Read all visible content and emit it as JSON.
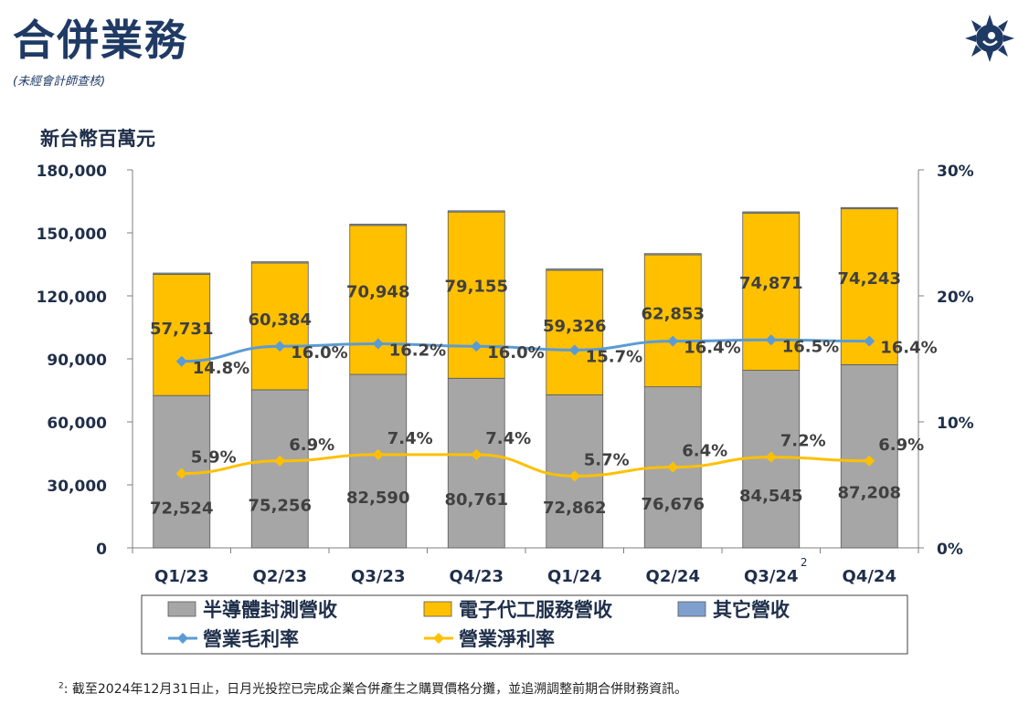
{
  "title": "合併業務",
  "subtitle": "(未經會計師查核)",
  "footnote": {
    "mark": "2",
    "text": ": 截至2024年12月31日止，日月光投控已完成企業合併產生之購買價格分攤，並追溯調整前期合併財務資訊。"
  },
  "logo": {
    "icon": "sun-logo-icon",
    "color": "#1f3a64"
  },
  "chart_data": {
    "type": "bar",
    "stacked": true,
    "unit_label": "新台幣百萬元",
    "categories": [
      "Q1/23",
      "Q2/23",
      "Q3/23",
      "Q4/23",
      "Q1/24",
      "Q2/24",
      "Q3/24",
      "Q4/24"
    ],
    "category_superscripts": [
      "",
      "",
      "",
      "",
      "",
      "",
      "2",
      ""
    ],
    "y_left": {
      "min": 0,
      "max": 180000,
      "ticks": [
        "0",
        "30,000",
        "60,000",
        "90,000",
        "120,000",
        "150,000",
        "180,000"
      ],
      "tick_values": [
        0,
        30000,
        60000,
        90000,
        120000,
        150000,
        180000
      ]
    },
    "y_right": {
      "min": 0,
      "max": 30,
      "ticks": [
        "0%",
        "10%",
        "20%",
        "30%"
      ],
      "tick_values": [
        0,
        10,
        20,
        30
      ]
    },
    "series": [
      {
        "name": "半導體封測營收",
        "color": "#a6a6a6",
        "values": [
          72524,
          75256,
          82590,
          80761,
          72862,
          76676,
          84545,
          87208
        ],
        "labels": [
          "72,524",
          "75,256",
          "82,590",
          "80,761",
          "72,862",
          "76,676",
          "84,545",
          "87,208"
        ]
      },
      {
        "name": "電子代工服務營收",
        "color": "#ffc000",
        "values": [
          57731,
          60384,
          70948,
          79155,
          59326,
          62853,
          74871,
          74243
        ],
        "labels": [
          "57,731",
          "60,384",
          "70,948",
          "79,155",
          "59,326",
          "62,853",
          "74,871",
          "74,243"
        ]
      },
      {
        "name": "其它營收",
        "color": "#7f9fcf",
        "values": [
          600,
          600,
          600,
          600,
          600,
          600,
          600,
          600
        ],
        "labels": []
      }
    ],
    "lines": [
      {
        "name": "營業毛利率",
        "color": "#5b9bd5",
        "axis": "right",
        "values": [
          14.8,
          16.0,
          16.2,
          16.0,
          15.7,
          16.4,
          16.5,
          16.4
        ],
        "labels": [
          "14.8%",
          "16.0%",
          "16.2%",
          "16.0%",
          "15.7%",
          "16.4%",
          "16.5%",
          "16.4%"
        ]
      },
      {
        "name": "營業淨利率",
        "color": "#ffc000",
        "axis": "right",
        "values": [
          5.9,
          6.9,
          7.4,
          7.4,
          5.7,
          6.4,
          7.2,
          6.9
        ],
        "labels": [
          "5.9%",
          "6.9%",
          "7.4%",
          "7.4%",
          "5.7%",
          "6.4%",
          "7.2%",
          "6.9%"
        ]
      }
    ],
    "legend": [
      "半導體封測營收",
      "電子代工服務營收",
      "其它營收",
      "營業毛利率",
      "營業淨利率"
    ]
  }
}
